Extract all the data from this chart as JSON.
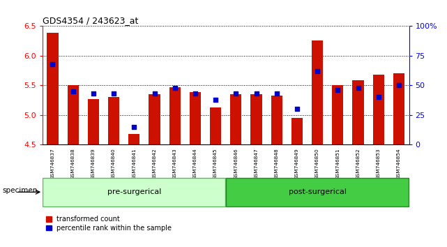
{
  "title": "GDS4354 / 243623_at",
  "samples": [
    "GSM746837",
    "GSM746838",
    "GSM746839",
    "GSM746840",
    "GSM746841",
    "GSM746842",
    "GSM746843",
    "GSM746844",
    "GSM746845",
    "GSM746846",
    "GSM746847",
    "GSM746848",
    "GSM746849",
    "GSM746850",
    "GSM746851",
    "GSM746852",
    "GSM746853",
    "GSM746854"
  ],
  "red_values": [
    6.38,
    5.5,
    5.27,
    5.3,
    4.68,
    5.35,
    5.47,
    5.38,
    5.13,
    5.35,
    5.35,
    5.33,
    4.95,
    6.26,
    5.5,
    5.58,
    5.68,
    5.7
  ],
  "blue_pct": [
    68,
    45,
    43,
    43,
    15,
    43,
    48,
    43,
    38,
    43,
    43,
    43,
    30,
    62,
    46,
    48,
    40,
    50
  ],
  "pre_surgical_count": 9,
  "ylim_left": [
    4.5,
    6.5
  ],
  "ylim_right": [
    0,
    100
  ],
  "yticks_left": [
    4.5,
    5.0,
    5.5,
    6.0,
    6.5
  ],
  "yticks_right": [
    0,
    25,
    50,
    75,
    100
  ],
  "bar_color": "#cc1100",
  "dot_color": "#0000cc",
  "pre_bg": "#ccffcc",
  "post_bg": "#44cc44",
  "tick_bg": "#cccccc",
  "legend_red_label": "transformed count",
  "legend_blue_label": "percentile rank within the sample",
  "pre_label": "pre-surgerical",
  "post_label": "post-surgerical"
}
